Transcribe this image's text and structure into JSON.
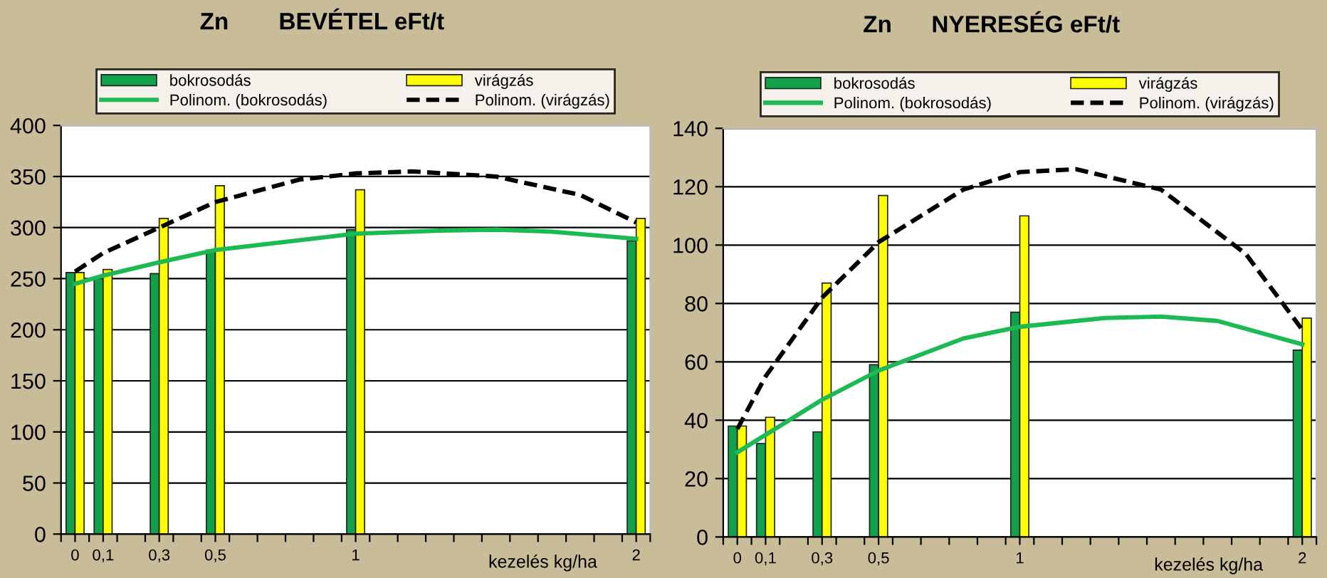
{
  "chart_data": [
    {
      "type": "bar",
      "title": "Zn",
      "subtitle": "BEVÉTEL eFt/t",
      "xlabel": "kezelés kg/ha",
      "legend": "top",
      "grid": "y",
      "marker": "none",
      "xlim": [
        -0.05,
        2.05
      ],
      "ylim": [
        0,
        400
      ],
      "yticks": [
        0,
        50,
        100,
        150,
        200,
        250,
        300,
        350,
        400
      ],
      "xticks": [
        {
          "value": 0,
          "label": "0"
        },
        {
          "value": 0.1,
          "label": "0,1"
        },
        {
          "value": 0.3,
          "label": "0,3"
        },
        {
          "value": 0.5,
          "label": "0,5"
        },
        {
          "value": 1,
          "label": "1"
        },
        {
          "value": 2,
          "label": "2"
        },
        {
          "value": -0.05,
          "label": null
        },
        {
          "value": 0.05,
          "label": null
        },
        {
          "value": 0.15,
          "label": null
        },
        {
          "value": 0.25,
          "label": null
        },
        {
          "value": 0.35,
          "label": null
        },
        {
          "value": 0.45,
          "label": null
        },
        {
          "value": 0.55,
          "label": null
        },
        {
          "value": 0.65,
          "label": null
        },
        {
          "value": 0.75,
          "label": null
        },
        {
          "value": 0.85,
          "label": null
        },
        {
          "value": 0.95,
          "label": null
        },
        {
          "value": 1.05,
          "label": null
        },
        {
          "value": 1.15,
          "label": null
        },
        {
          "value": 1.25,
          "label": null
        },
        {
          "value": 1.35,
          "label": null
        },
        {
          "value": 1.45,
          "label": null
        },
        {
          "value": 1.55,
          "label": null
        },
        {
          "value": 1.65,
          "label": null
        },
        {
          "value": 1.75,
          "label": null
        },
        {
          "value": 1.85,
          "label": null
        },
        {
          "value": 1.95,
          "label": null
        },
        {
          "value": 2.05,
          "label": null
        }
      ],
      "x": [
        0,
        0.1,
        0.3,
        0.5,
        1,
        2
      ],
      "series": [
        {
          "name": "bokrosodás",
          "color": "#13a04a",
          "values": [
            256,
            250,
            255,
            278,
            298,
            287
          ]
        },
        {
          "name": "virágzás",
          "color": "#ffff00",
          "values": [
            256,
            259,
            309,
            341,
            337,
            309
          ]
        },
        {
          "name": "Polinom. (bokrosodás)",
          "type": "line",
          "line_style": "solid",
          "color": "#1db954",
          "x": [
            0,
            0.1,
            0.3,
            0.5,
            1,
            1.3,
            1.5,
            1.7,
            2
          ],
          "values": [
            245,
            253,
            266,
            278,
            294,
            297,
            298,
            296,
            289
          ]
        },
        {
          "name": "Polinom. (virágzás)",
          "type": "line",
          "line_style": "dashed",
          "color": "#000000",
          "x": [
            0,
            0.1,
            0.3,
            0.5,
            0.8,
            1,
            1.2,
            1.5,
            1.8,
            2
          ],
          "values": [
            257,
            275,
            300,
            325,
            347,
            353,
            355,
            350,
            332,
            305
          ]
        }
      ]
    },
    {
      "type": "bar",
      "title": "Zn",
      "subtitle": "NYERESÉG eFt/t",
      "xlabel": "kezelés kg/ha",
      "legend": "top",
      "grid": "y",
      "marker": "none",
      "xlim": [
        -0.05,
        2.05
      ],
      "ylim": [
        0,
        140
      ],
      "yticks": [
        0,
        20,
        40,
        60,
        80,
        100,
        120,
        140
      ],
      "xticks": [
        {
          "value": 0,
          "label": "0"
        },
        {
          "value": 0.1,
          "label": "0,1"
        },
        {
          "value": 0.3,
          "label": "0,3"
        },
        {
          "value": 0.5,
          "label": "0,5"
        },
        {
          "value": 1,
          "label": "1"
        },
        {
          "value": 2,
          "label": "2"
        },
        {
          "value": -0.05,
          "label": null
        },
        {
          "value": 0.05,
          "label": null
        },
        {
          "value": 0.15,
          "label": null
        },
        {
          "value": 0.25,
          "label": null
        },
        {
          "value": 0.35,
          "label": null
        },
        {
          "value": 0.45,
          "label": null
        },
        {
          "value": 0.55,
          "label": null
        },
        {
          "value": 0.65,
          "label": null
        },
        {
          "value": 0.75,
          "label": null
        },
        {
          "value": 0.85,
          "label": null
        },
        {
          "value": 0.95,
          "label": null
        },
        {
          "value": 1.05,
          "label": null
        },
        {
          "value": 1.15,
          "label": null
        },
        {
          "value": 1.25,
          "label": null
        },
        {
          "value": 1.35,
          "label": null
        },
        {
          "value": 1.45,
          "label": null
        },
        {
          "value": 1.55,
          "label": null
        },
        {
          "value": 1.65,
          "label": null
        },
        {
          "value": 1.75,
          "label": null
        },
        {
          "value": 1.85,
          "label": null
        },
        {
          "value": 1.95,
          "label": null
        },
        {
          "value": 2.05,
          "label": null
        }
      ],
      "x": [
        0,
        0.1,
        0.3,
        0.5,
        1,
        2
      ],
      "series": [
        {
          "name": "bokrosodás",
          "color": "#13a04a",
          "values": [
            38,
            32,
            36,
            59,
            77,
            64
          ]
        },
        {
          "name": "virágzás",
          "color": "#ffff00",
          "values": [
            38,
            41,
            87,
            117,
            110,
            75
          ]
        },
        {
          "name": "Polinom. (bokrosodás)",
          "type": "line",
          "line_style": "solid",
          "color": "#1db954",
          "x": [
            0,
            0.1,
            0.3,
            0.5,
            0.8,
            1,
            1.3,
            1.5,
            1.7,
            2
          ],
          "values": [
            29,
            35,
            47,
            57,
            68,
            72,
            75,
            75.5,
            74,
            66
          ]
        },
        {
          "name": "Polinom. (virágzás)",
          "type": "line",
          "line_style": "dashed",
          "color": "#000000",
          "x": [
            0,
            0.1,
            0.3,
            0.5,
            0.8,
            1,
            1.2,
            1.5,
            1.8,
            2
          ],
          "values": [
            37,
            55,
            82,
            101,
            119,
            125,
            126,
            119,
            97,
            71
          ]
        }
      ]
    }
  ]
}
